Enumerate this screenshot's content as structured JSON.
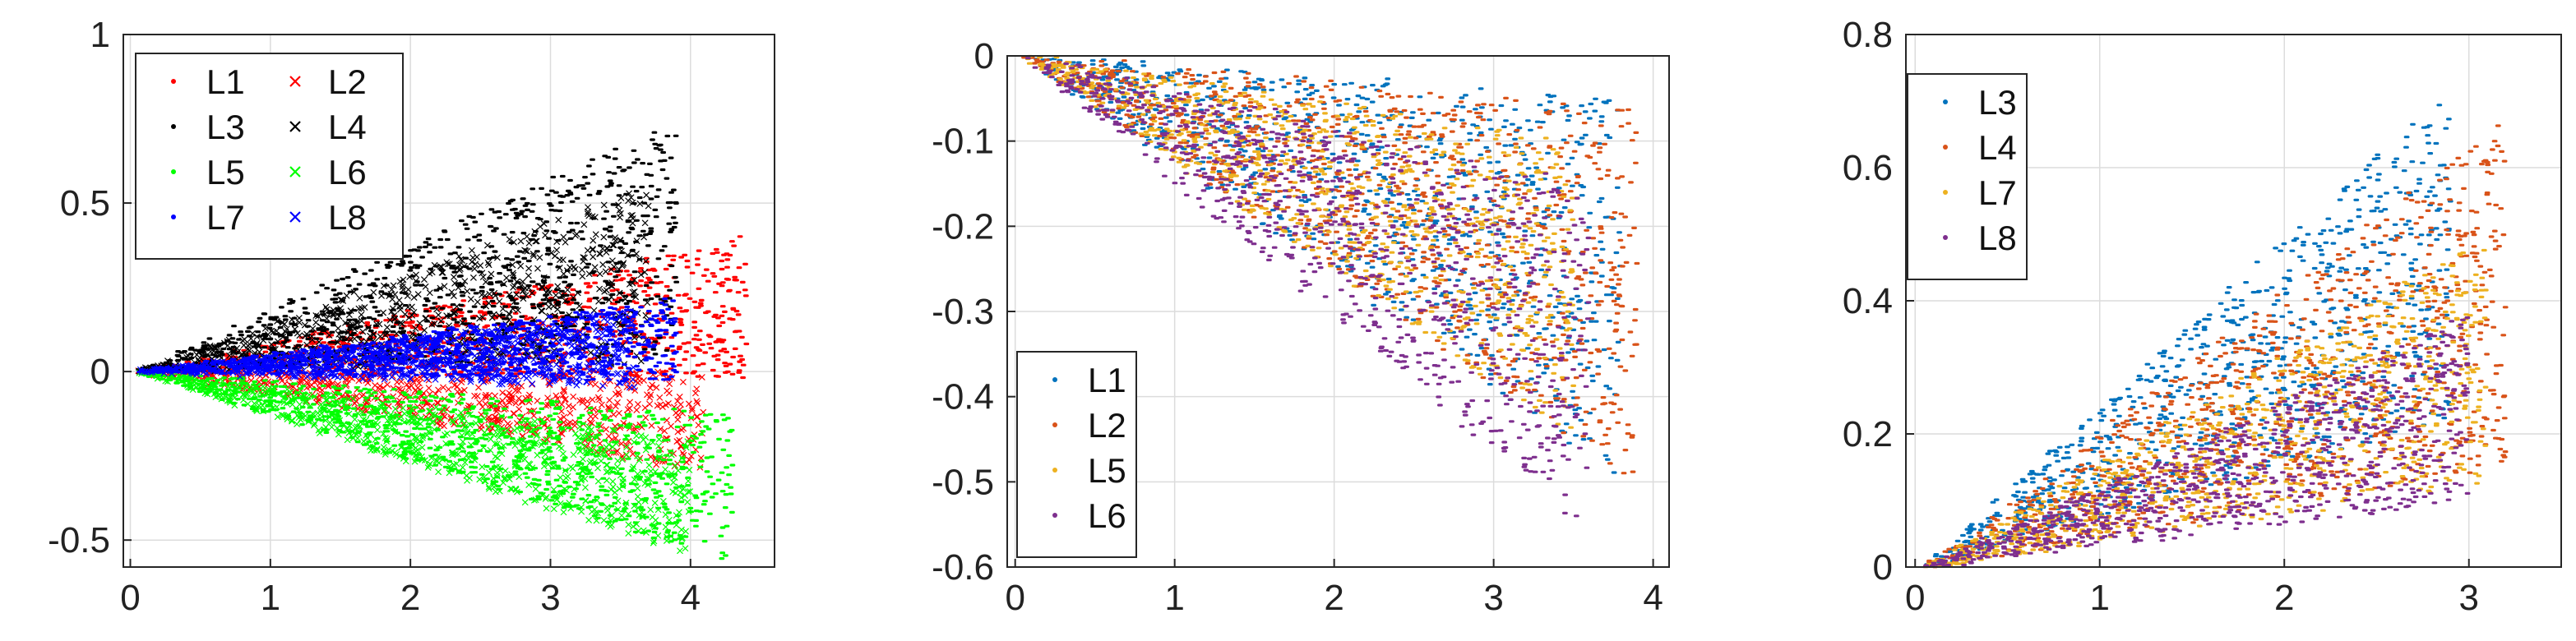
{
  "chart_data": [
    {
      "type": "scatter",
      "title": "",
      "xlabel": "",
      "ylabel": "",
      "xlim": [
        -0.05,
        4.6
      ],
      "ylim": [
        -0.58,
        1.0
      ],
      "xticks": [
        0,
        1,
        2,
        3,
        4
      ],
      "yticks": [
        -0.5,
        0,
        0.5,
        1
      ],
      "xtick_labels": [
        "0",
        "1",
        "2",
        "3",
        "4"
      ],
      "ytick_labels": [
        "-0.5",
        "0",
        "0.5",
        "1"
      ],
      "grid": true,
      "legend": {
        "placement": "top-left",
        "columns": 2
      },
      "series": [
        {
          "name": "L1",
          "color": "#ff0000",
          "marker": "dot",
          "x_max": 4.4,
          "y_lower": -0.02,
          "y_upper": 0.4
        },
        {
          "name": "L2",
          "color": "#ff0000",
          "marker": "x",
          "x_max": 4.1,
          "y_lower": -0.3,
          "y_upper": 0.0
        },
        {
          "name": "L3",
          "color": "#000000",
          "marker": "dot",
          "x_max": 3.9,
          "y_lower": 0.05,
          "y_upper": 0.75
        },
        {
          "name": "L4",
          "color": "#000000",
          "marker": "x",
          "x_max": 3.7,
          "y_lower": 0.02,
          "y_upper": 0.55
        },
        {
          "name": "L5",
          "color": "#00ff00",
          "marker": "dot",
          "x_max": 4.3,
          "y_lower": -0.57,
          "y_upper": -0.12
        },
        {
          "name": "L6",
          "color": "#00ff00",
          "marker": "x",
          "x_max": 4.0,
          "y_lower": -0.55,
          "y_upper": -0.2
        },
        {
          "name": "L7",
          "color": "#0000ff",
          "marker": "dot",
          "x_max": 3.9,
          "y_lower": -0.03,
          "y_upper": 0.22
        },
        {
          "name": "L8",
          "color": "#0000ff",
          "marker": "x",
          "x_max": 3.6,
          "y_lower": -0.05,
          "y_upper": 0.18
        }
      ]
    },
    {
      "type": "scatter",
      "title": "",
      "xlabel": "",
      "ylabel": "",
      "xlim": [
        -0.05,
        4.1
      ],
      "ylim": [
        -0.6,
        0.0
      ],
      "xticks": [
        0,
        1,
        2,
        3,
        4
      ],
      "yticks": [
        -0.6,
        -0.5,
        -0.4,
        -0.3,
        -0.2,
        -0.1,
        0
      ],
      "xtick_labels": [
        "0",
        "1",
        "2",
        "3",
        "4"
      ],
      "ytick_labels": [
        "-0.6",
        "-0.5",
        "-0.4",
        "-0.3",
        "-0.2",
        "-0.1",
        "0"
      ],
      "grid": true,
      "legend": {
        "placement": "bottom-left",
        "columns": 1
      },
      "series": [
        {
          "name": "L1",
          "color": "#0072bd",
          "marker": "dot",
          "x_max": 3.8,
          "y_lower": -0.5,
          "y_upper": -0.05
        },
        {
          "name": "L2",
          "color": "#d95319",
          "marker": "dot",
          "x_max": 3.9,
          "y_lower": -0.5,
          "y_upper": -0.06
        },
        {
          "name": "L5",
          "color": "#edb120",
          "marker": "dot",
          "x_max": 3.5,
          "y_lower": -0.45,
          "y_upper": -0.1
        },
        {
          "name": "L6",
          "color": "#7e2f8e",
          "marker": "dot",
          "x_max": 3.6,
          "y_lower": -0.56,
          "y_upper": -0.15
        }
      ]
    },
    {
      "type": "scatter",
      "title": "",
      "xlabel": "",
      "ylabel": "",
      "xlim": [
        -0.05,
        3.5
      ],
      "ylim": [
        0,
        0.8
      ],
      "xticks": [
        0,
        1,
        2,
        3
      ],
      "yticks": [
        0,
        0.2,
        0.4,
        0.6,
        0.8
      ],
      "xtick_labels": [
        "0",
        "1",
        "2",
        "3"
      ],
      "ytick_labels": [
        "0",
        "0.2",
        "0.4",
        "0.6",
        "0.8"
      ],
      "grid": true,
      "legend": {
        "placement": "top-left",
        "columns": 1
      },
      "series": [
        {
          "name": "L3",
          "color": "#0072bd",
          "marker": "dot",
          "x_max": 2.9,
          "y_lower": 0.22,
          "y_upper": 0.72
        },
        {
          "name": "L4",
          "color": "#d95319",
          "marker": "dot",
          "x_max": 3.2,
          "y_lower": 0.15,
          "y_upper": 0.67
        },
        {
          "name": "L7",
          "color": "#edb120",
          "marker": "dot",
          "x_max": 3.1,
          "y_lower": 0.12,
          "y_upper": 0.5
        },
        {
          "name": "L8",
          "color": "#7e2f8e",
          "marker": "dot",
          "x_max": 3.0,
          "y_lower": 0.1,
          "y_upper": 0.38
        }
      ]
    }
  ]
}
